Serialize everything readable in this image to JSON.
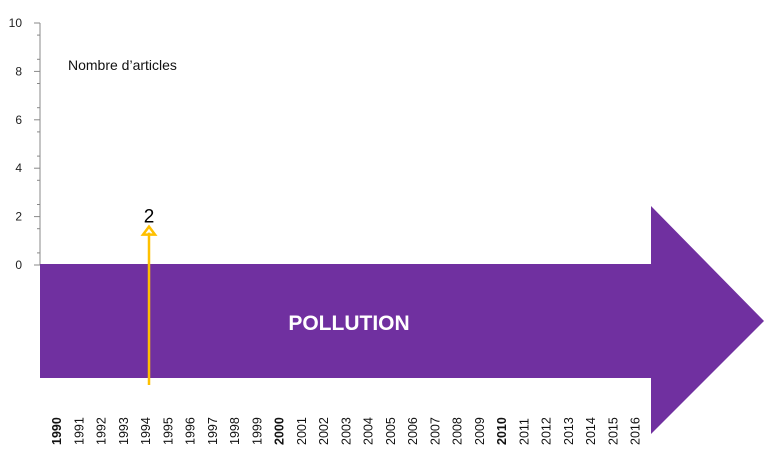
{
  "chart_data": {
    "type": "bar",
    "ylabel": "Nombre d’articles",
    "banner_label": "POLLUTION",
    "ylim": [
      0,
      10
    ],
    "yticks": [
      "0",
      "2",
      "4",
      "6",
      "8",
      "10"
    ],
    "categories": [
      "1990",
      "1991",
      "1992",
      "1993",
      "1994",
      "1995",
      "1996",
      "1997",
      "1998",
      "1999",
      "2000",
      "2001",
      "2002",
      "2003",
      "2004",
      "2005",
      "2006",
      "2007",
      "2008",
      "2009",
      "2010",
      "2011",
      "2012",
      "2013",
      "2014",
      "2015",
      "2016"
    ],
    "bold_categories": [
      "1990",
      "2000",
      "2010"
    ],
    "values": [
      0,
      0,
      0,
      0,
      2,
      0,
      0,
      0,
      0,
      0,
      0,
      0,
      0,
      0,
      0,
      0,
      0,
      0,
      0,
      0,
      0,
      0,
      0,
      0,
      0,
      0,
      0
    ],
    "data_labels": [
      {
        "category": "1994",
        "text": "2"
      }
    ],
    "grid": false,
    "legend": "none"
  },
  "colors": {
    "banner": "#7030A0",
    "marker": "#FFC000",
    "axis": "#888888"
  }
}
